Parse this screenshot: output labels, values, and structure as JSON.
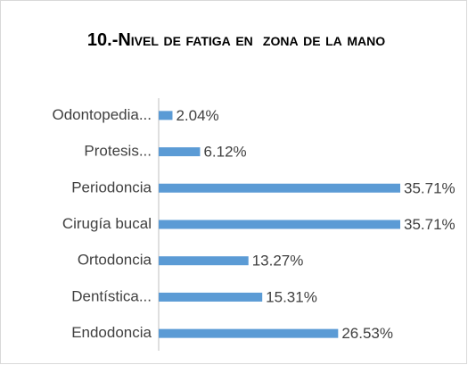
{
  "chart_data": {
    "type": "bar",
    "orientation": "horizontal",
    "title": "10.-Nivel de fatiga en  zona de la mano",
    "categories": [
      "Odontopedia...",
      "Protesis...",
      "Periodoncia",
      "Cirugía bucal",
      "Ortodoncia",
      "Dentística...",
      "Endodoncia"
    ],
    "values": [
      2.04,
      6.12,
      35.71,
      35.71,
      13.27,
      15.31,
      26.53
    ],
    "value_labels": [
      "2.04%",
      "6.12%",
      "35.71%",
      "35.71%",
      "13.27%",
      "15.31%",
      "26.53%"
    ],
    "color": "#5b9bd5"
  }
}
